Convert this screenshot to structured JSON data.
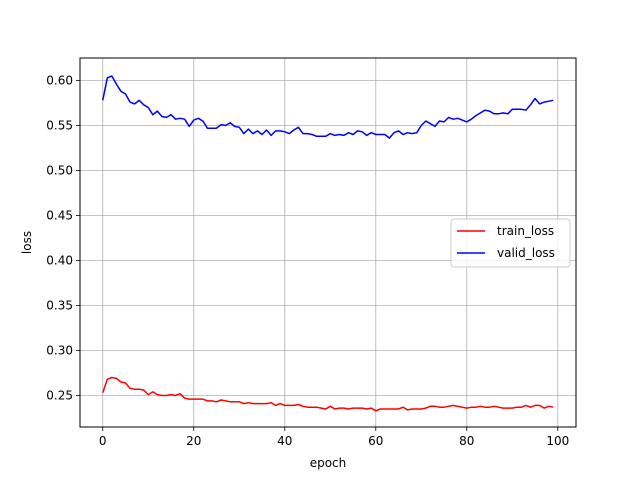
{
  "chart_data": {
    "type": "line",
    "title": "",
    "xlabel": "epoch",
    "ylabel": "loss",
    "xlim": [
      -5,
      104
    ],
    "ylim": [
      0.215,
      0.625
    ],
    "grid": true,
    "legend_position": "center-right",
    "x_ticks": [
      0,
      20,
      40,
      60,
      80,
      100
    ],
    "x_tick_labels": [
      "0",
      "20",
      "40",
      "60",
      "80",
      "100"
    ],
    "y_ticks": [
      0.25,
      0.3,
      0.35,
      0.4,
      0.45,
      0.5,
      0.55,
      0.6
    ],
    "y_tick_labels": [
      "0.25",
      "0.30",
      "0.35",
      "0.40",
      "0.45",
      "0.50",
      "0.55",
      "0.60"
    ],
    "x": [
      0,
      1,
      2,
      3,
      4,
      5,
      6,
      7,
      8,
      9,
      10,
      11,
      12,
      13,
      14,
      15,
      16,
      17,
      18,
      19,
      20,
      21,
      22,
      23,
      24,
      25,
      26,
      27,
      28,
      29,
      30,
      31,
      32,
      33,
      34,
      35,
      36,
      37,
      38,
      39,
      40,
      41,
      42,
      43,
      44,
      45,
      46,
      47,
      48,
      49,
      50,
      51,
      52,
      53,
      54,
      55,
      56,
      57,
      58,
      59,
      60,
      61,
      62,
      63,
      64,
      65,
      66,
      67,
      68,
      69,
      70,
      71,
      72,
      73,
      74,
      75,
      76,
      77,
      78,
      79,
      80,
      81,
      82,
      83,
      84,
      85,
      86,
      87,
      88,
      89,
      90,
      91,
      92,
      93,
      94,
      95,
      96,
      97,
      98,
      99
    ],
    "series": [
      {
        "name": "train_loss",
        "color": "#ff0000",
        "values": [
          0.253,
          0.268,
          0.27,
          0.269,
          0.265,
          0.264,
          0.258,
          0.257,
          0.257,
          0.256,
          0.251,
          0.254,
          0.251,
          0.25,
          0.25,
          0.251,
          0.25,
          0.252,
          0.247,
          0.246,
          0.246,
          0.246,
          0.246,
          0.244,
          0.244,
          0.243,
          0.245,
          0.244,
          0.243,
          0.243,
          0.243,
          0.241,
          0.242,
          0.241,
          0.241,
          0.241,
          0.241,
          0.242,
          0.239,
          0.241,
          0.239,
          0.239,
          0.239,
          0.24,
          0.238,
          0.237,
          0.237,
          0.237,
          0.236,
          0.235,
          0.238,
          0.235,
          0.236,
          0.236,
          0.235,
          0.236,
          0.236,
          0.236,
          0.235,
          0.236,
          0.233,
          0.235,
          0.235,
          0.235,
          0.235,
          0.235,
          0.237,
          0.234,
          0.235,
          0.235,
          0.235,
          0.236,
          0.238,
          0.238,
          0.237,
          0.237,
          0.238,
          0.239,
          0.238,
          0.237,
          0.236,
          0.237,
          0.237,
          0.238,
          0.237,
          0.237,
          0.238,
          0.237,
          0.236,
          0.236,
          0.236,
          0.237,
          0.237,
          0.239,
          0.237,
          0.239,
          0.239,
          0.236,
          0.238,
          0.237
        ]
      },
      {
        "name": "valid_loss",
        "color": "#0000ff",
        "values": [
          0.578,
          0.603,
          0.605,
          0.596,
          0.588,
          0.585,
          0.576,
          0.574,
          0.578,
          0.573,
          0.57,
          0.562,
          0.566,
          0.56,
          0.559,
          0.562,
          0.557,
          0.558,
          0.557,
          0.549,
          0.556,
          0.558,
          0.555,
          0.547,
          0.547,
          0.547,
          0.551,
          0.55,
          0.553,
          0.549,
          0.548,
          0.541,
          0.546,
          0.541,
          0.544,
          0.54,
          0.545,
          0.539,
          0.544,
          0.544,
          0.543,
          0.541,
          0.545,
          0.548,
          0.541,
          0.541,
          0.54,
          0.538,
          0.538,
          0.538,
          0.541,
          0.539,
          0.54,
          0.539,
          0.542,
          0.54,
          0.544,
          0.543,
          0.539,
          0.542,
          0.54,
          0.54,
          0.54,
          0.536,
          0.542,
          0.544,
          0.54,
          0.542,
          0.541,
          0.542,
          0.55,
          0.555,
          0.552,
          0.549,
          0.555,
          0.554,
          0.559,
          0.557,
          0.558,
          0.556,
          0.554,
          0.557,
          0.561,
          0.564,
          0.567,
          0.566,
          0.563,
          0.563,
          0.564,
          0.563,
          0.568,
          0.568,
          0.568,
          0.567,
          0.573,
          0.58,
          0.574,
          0.576,
          0.577,
          0.578
        ]
      }
    ]
  }
}
